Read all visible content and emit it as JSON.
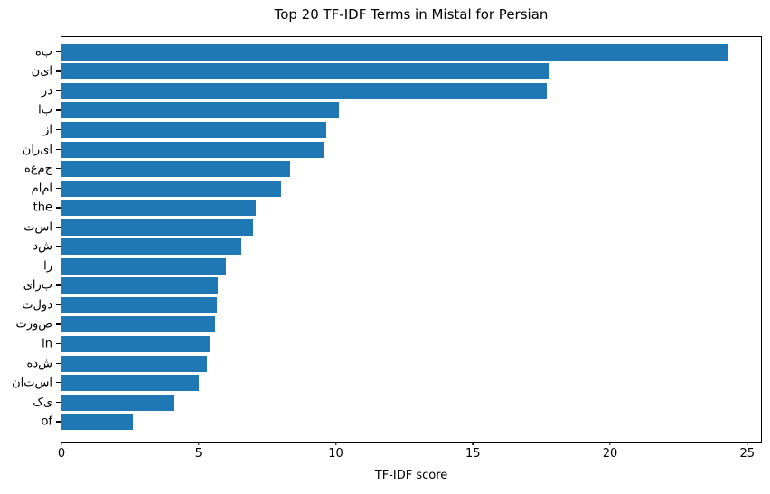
{
  "chart_data": {
    "type": "bar",
    "orientation": "horizontal",
    "title": "Top 20 TF-IDF Terms in Mistal for Persian",
    "xlabel": "TF-IDF score",
    "ylabel": "",
    "categories": [
      "به",
      "این",
      "در",
      "با",
      "از",
      "ایران",
      "جمعه",
      "امام",
      "the",
      "است",
      "شد",
      "را",
      "برای",
      "دولت",
      "صورت",
      "in",
      "شده",
      "استان",
      "یک",
      "of"
    ],
    "categories_as_rendered": [
      "هب",
      "نیا",
      "رد",
      "اب",
      "زا",
      "ناریا",
      "هعمج",
      "ماما",
      "the",
      "تسا",
      "دش",
      "ار",
      "یارب",
      "تلود",
      "تروص",
      "in",
      "هدش",
      "ناتسا",
      "کی",
      "of"
    ],
    "values": [
      24.3,
      17.8,
      17.7,
      10.1,
      9.65,
      9.6,
      8.35,
      8.0,
      7.1,
      7.0,
      6.55,
      6.0,
      5.7,
      5.65,
      5.6,
      5.4,
      5.3,
      5.0,
      4.1,
      2.6
    ],
    "xticks": [
      0,
      5,
      10,
      15,
      20,
      25
    ],
    "xlim": [
      0,
      25.5
    ],
    "grid": false,
    "legend": null,
    "bar_color": "#1f77b4",
    "axis_color": "#000000",
    "background_color": "#ffffff"
  }
}
